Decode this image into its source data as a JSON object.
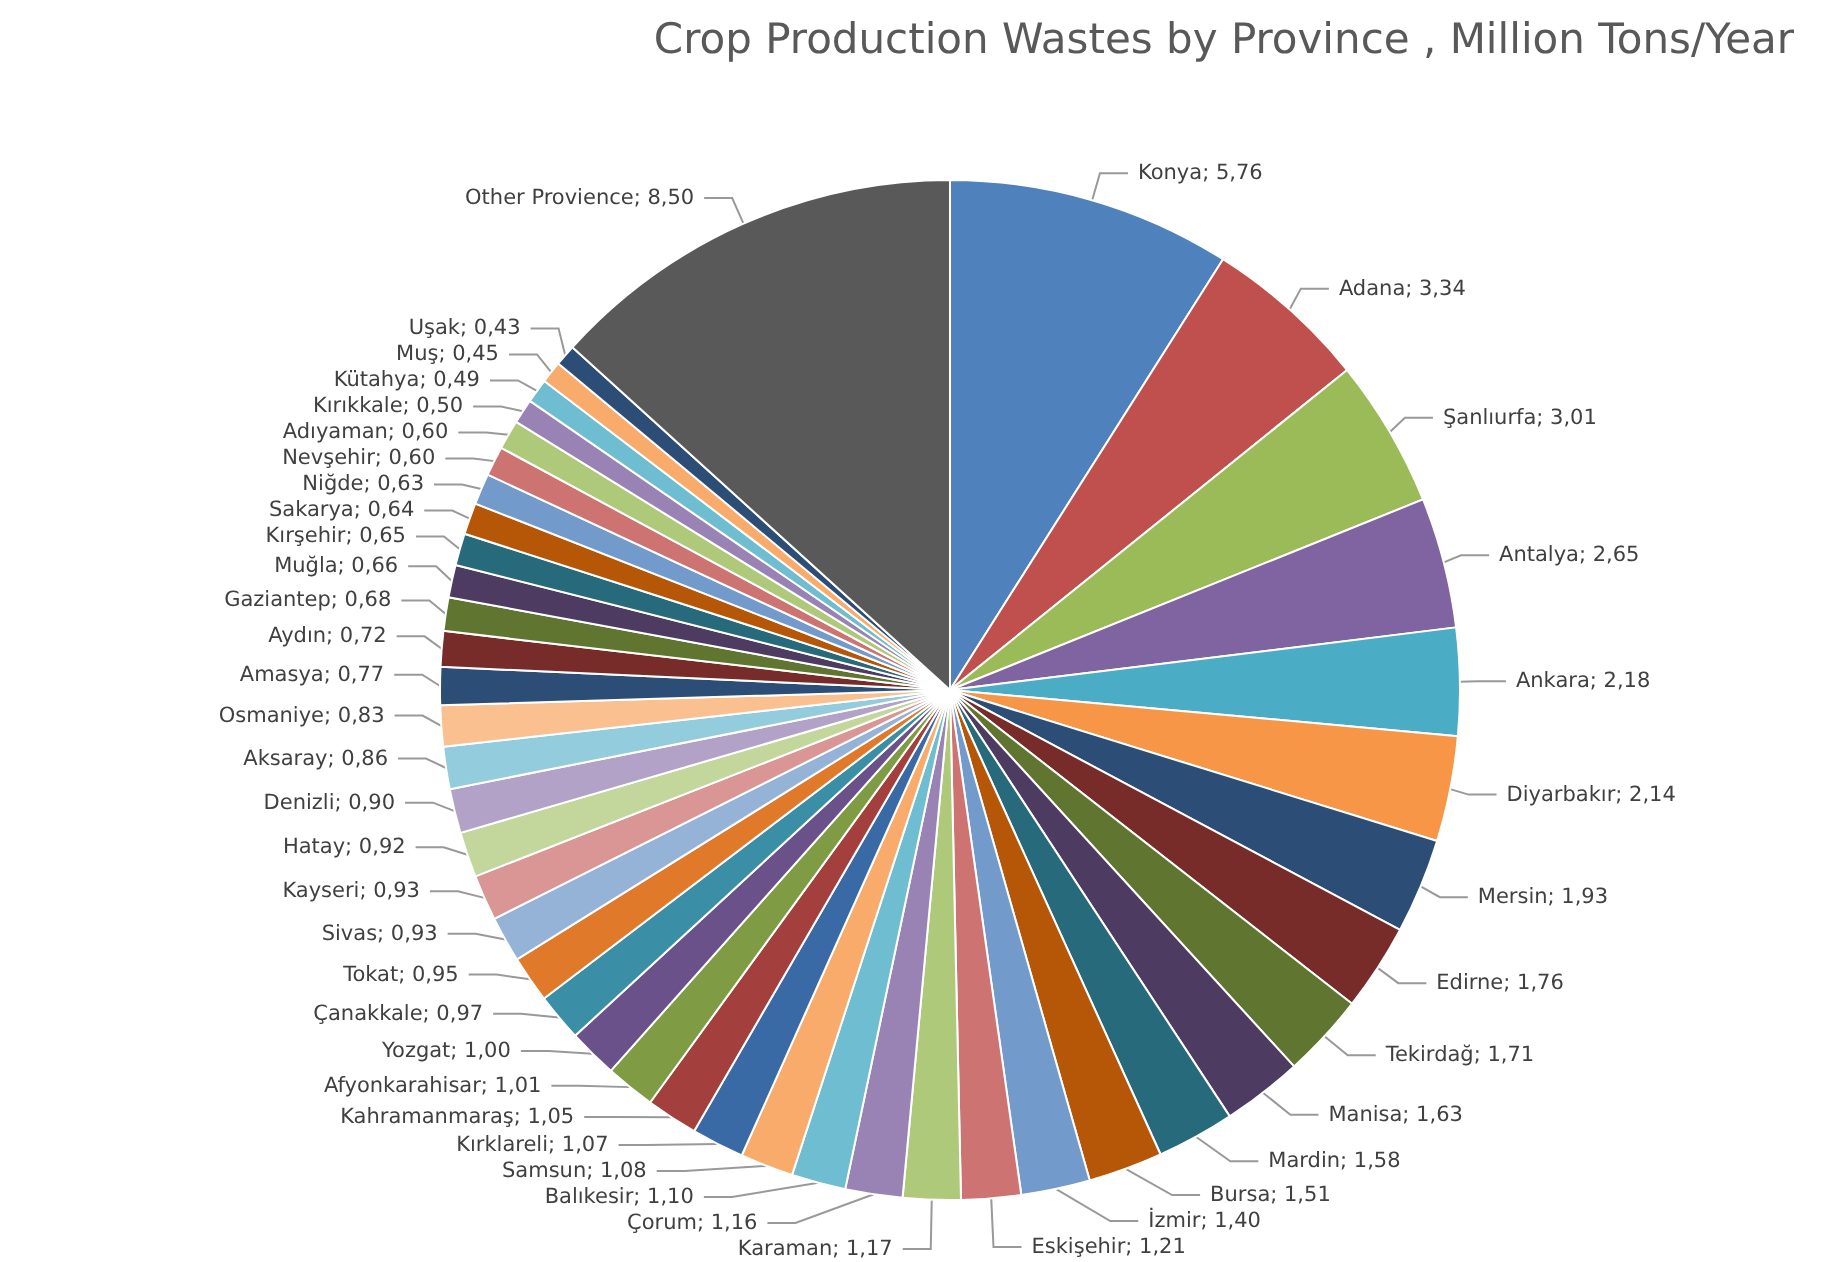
{
  "chart_data": {
    "type": "pie",
    "title": "Crop Production Wastes by Province , Million Tons/Year",
    "value_labels": [
      "5,76",
      "3,34",
      "3,01",
      "2,65",
      "2,18",
      "2,14",
      "1,93",
      "1,76",
      "1,71",
      "1,63",
      "1,58",
      "1,51",
      "1,40",
      "1,21",
      "1,17",
      "1,16",
      "1,10",
      "1,08",
      "1,07",
      "1,05",
      "1,01",
      "1,00",
      "0,97",
      "0,95",
      "0,93",
      "0,93",
      "0,92",
      "0,90",
      "0,86",
      "0,83",
      "0,77",
      "0,72",
      "0,68",
      "0,66",
      "0,65",
      "0,64",
      "0,63",
      "0,60",
      "0,60",
      "0,50",
      "0,49",
      "0,45",
      "0,43",
      "8,50"
    ],
    "legend": false,
    "categories": [
      "Konya",
      "Adana",
      "Şanlıurfa",
      "Antalya",
      "Ankara",
      "Diyarbakır",
      "Mersin",
      "Edirne",
      "Tekirdağ",
      "Manisa",
      "Mardin",
      "Bursa",
      "İzmir",
      "Eskişehir",
      "Karaman",
      "Çorum",
      "Balıkesir",
      "Samsun",
      "Kırklareli",
      "Kahramanmaraş",
      "Afyonkarahisar",
      "Yozgat",
      "Çanakkale",
      "Tokat",
      "Sivas",
      "Kayseri",
      "Hatay",
      "Denizli",
      "Aksaray",
      "Osmaniye",
      "Amasya",
      "Aydın",
      "Gaziantep",
      "Muğla",
      "Kırşehir",
      "Sakarya",
      "Niğde",
      "Nevşehir",
      "Adıyaman",
      "Kırıkkale",
      "Kütahya",
      "Muş",
      "Uşak",
      "Other Provience"
    ],
    "values": [
      5.76,
      3.34,
      3.01,
      2.65,
      2.18,
      2.14,
      1.93,
      1.76,
      1.71,
      1.63,
      1.58,
      1.51,
      1.4,
      1.21,
      1.17,
      1.16,
      1.1,
      1.08,
      1.07,
      1.05,
      1.01,
      1.0,
      0.97,
      0.95,
      0.93,
      0.93,
      0.92,
      0.9,
      0.86,
      0.83,
      0.77,
      0.72,
      0.68,
      0.66,
      0.65,
      0.64,
      0.63,
      0.6,
      0.6,
      0.5,
      0.49,
      0.45,
      0.43,
      8.5
    ],
    "colors": [
      "#4f81bd",
      "#c0504d",
      "#9bbb59",
      "#8064a2",
      "#4bacc6",
      "#f79646",
      "#2c4d75",
      "#772c2a",
      "#5f7530",
      "#4d3b62",
      "#276a7c",
      "#b65708",
      "#729aca",
      "#cd7371",
      "#afc97a",
      "#9983b5",
      "#6fbdd1",
      "#f9ab6b",
      "#3a6aa5",
      "#a33f3c",
      "#7f9c45",
      "#6a5189",
      "#3a8fa6",
      "#e0792a",
      "#95b3d7",
      "#d99694",
      "#c3d69b",
      "#b2a2c7",
      "#93cddd",
      "#fac090",
      "#2c4d75",
      "#772c2a",
      "#5f7530",
      "#4d3b62",
      "#276a7c",
      "#b65708",
      "#729aca",
      "#cd7371",
      "#afc97a",
      "#9983b5",
      "#6fbdd1",
      "#f9ab6b",
      "#2c4d75",
      "#595959"
    ]
  }
}
